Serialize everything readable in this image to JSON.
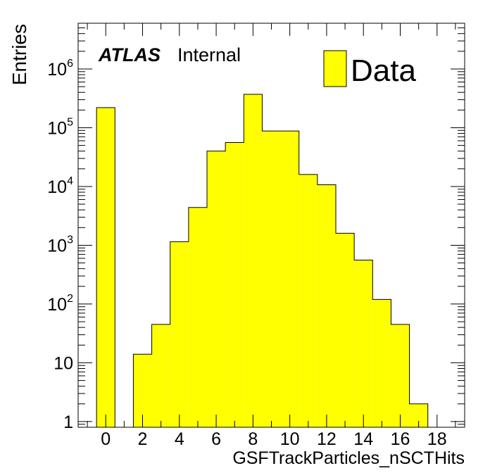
{
  "chart_data": {
    "type": "bar",
    "style": "histogram",
    "xlabel": "GSFTrackParticles_nSCTHits",
    "ylabel": "Entries",
    "x_range": [
      -1.5,
      19.5
    ],
    "y_range": [
      0.8,
      6000000
    ],
    "y_scale": "log",
    "grid": false,
    "legend_position": "top-right",
    "x_ticks": [
      0,
      2,
      4,
      6,
      8,
      10,
      12,
      14,
      16,
      18
    ],
    "y_ticks": [
      {
        "value": 1,
        "label": "1"
      },
      {
        "value": 10,
        "label": "10"
      },
      {
        "value": 100,
        "base": "10",
        "exp": "2"
      },
      {
        "value": 1000,
        "base": "10",
        "exp": "3"
      },
      {
        "value": 10000,
        "base": "10",
        "exp": "4"
      },
      {
        "value": 100000,
        "base": "10",
        "exp": "5"
      },
      {
        "value": 1000000,
        "base": "10",
        "exp": "6"
      }
    ],
    "series": [
      {
        "name": "Data",
        "color": "#ffff00",
        "bins": [
          {
            "low": -0.5,
            "high": 0.5,
            "value": 220000
          },
          {
            "low": 0.5,
            "high": 1.5,
            "value": 0
          },
          {
            "low": 1.5,
            "high": 2.5,
            "value": 14
          },
          {
            "low": 2.5,
            "high": 3.5,
            "value": 45
          },
          {
            "low": 3.5,
            "high": 4.5,
            "value": 1150
          },
          {
            "low": 4.5,
            "high": 5.5,
            "value": 4400
          },
          {
            "low": 5.5,
            "high": 6.5,
            "value": 40000
          },
          {
            "low": 6.5,
            "high": 7.5,
            "value": 56000
          },
          {
            "low": 7.5,
            "high": 8.5,
            "value": 370000
          },
          {
            "low": 8.5,
            "high": 9.5,
            "value": 88000
          },
          {
            "low": 9.5,
            "high": 10.5,
            "value": 88000
          },
          {
            "low": 10.5,
            "high": 11.5,
            "value": 16000
          },
          {
            "low": 11.5,
            "high": 12.5,
            "value": 10700
          },
          {
            "low": 12.5,
            "high": 13.5,
            "value": 1600
          },
          {
            "low": 13.5,
            "high": 14.5,
            "value": 560
          },
          {
            "low": 14.5,
            "high": 15.5,
            "value": 120
          },
          {
            "low": 15.5,
            "high": 16.5,
            "value": 45
          },
          {
            "low": 16.5,
            "high": 17.5,
            "value": 2
          },
          {
            "low": 17.5,
            "high": 18.5,
            "value": 0
          }
        ]
      }
    ]
  },
  "labels": {
    "atlas": "ATLAS",
    "internal": "Internal",
    "legend_entry": "Data"
  }
}
